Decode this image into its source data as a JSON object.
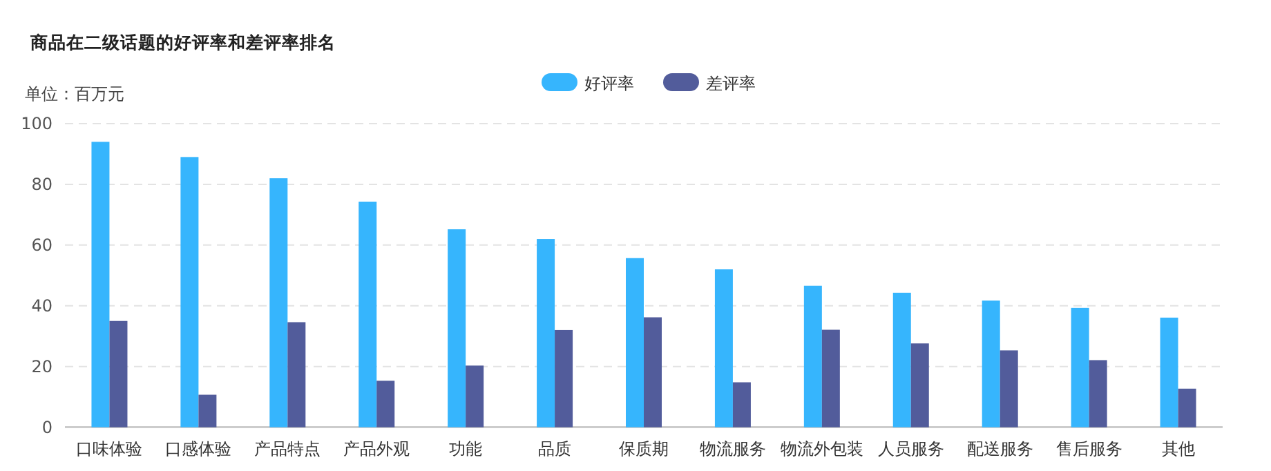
{
  "chart_data": {
    "type": "bar",
    "title": "商品在二级话题的好评率和差评率排名",
    "ylabel": "单位：百万元",
    "categories": [
      "口味体验",
      "口感体验",
      "产品特点",
      "产品外观",
      "功能",
      "品质",
      "保质期",
      "物流服务",
      "物流外包装",
      "人员服务",
      "配送服务",
      "售后服务",
      "其他"
    ],
    "series": [
      {
        "name": "好评率",
        "color": "#36b5fd",
        "values": [
          94,
          89,
          82,
          74.3,
          65.2,
          62,
          55.7,
          52,
          46.6,
          44.3,
          41.7,
          39.3,
          36.1
        ]
      },
      {
        "name": "差评率",
        "color": "#525c9b",
        "values": [
          35,
          10.7,
          34.6,
          15.3,
          20.3,
          32,
          36.2,
          14.8,
          32.1,
          27.6,
          25.3,
          22.1,
          12.7
        ]
      }
    ],
    "ylim": [
      0,
      100
    ],
    "yticks": [
      0,
      20,
      40,
      60,
      80,
      100
    ],
    "grid": "y",
    "legend": "top"
  }
}
